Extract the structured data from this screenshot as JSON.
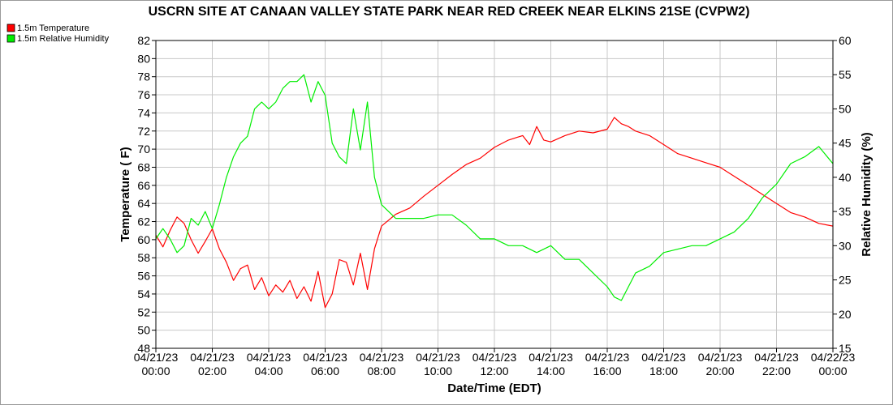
{
  "chart_data": {
    "type": "line",
    "title": "USCRN SITE AT CANAAN VALLEY STATE PARK NEAR RED CREEK NEAR ELKINS 21SE (CVPW2)",
    "xlabel": "Date/Time (EDT)",
    "ylabel_left": "Temperature ( F)",
    "ylabel_right": "Relative Humidity (%)",
    "x_tick_labels": [
      {
        "date": "04/21/23",
        "time": "00:00"
      },
      {
        "date": "04/21/23",
        "time": "02:00"
      },
      {
        "date": "04/21/23",
        "time": "04:00"
      },
      {
        "date": "04/21/23",
        "time": "06:00"
      },
      {
        "date": "04/21/23",
        "time": "08:00"
      },
      {
        "date": "04/21/23",
        "time": "10:00"
      },
      {
        "date": "04/21/23",
        "time": "12:00"
      },
      {
        "date": "04/21/23",
        "time": "14:00"
      },
      {
        "date": "04/21/23",
        "time": "16:00"
      },
      {
        "date": "04/21/23",
        "time": "18:00"
      },
      {
        "date": "04/21/23",
        "time": "20:00"
      },
      {
        "date": "04/21/23",
        "time": "22:00"
      },
      {
        "date": "04/22/23",
        "time": "00:00"
      }
    ],
    "x_range_hours": [
      0,
      24
    ],
    "ylim_left": [
      48,
      82
    ],
    "y_ticks_left": [
      48,
      50,
      52,
      54,
      56,
      58,
      60,
      62,
      64,
      66,
      68,
      70,
      72,
      74,
      76,
      78,
      80,
      82
    ],
    "ylim_right": [
      15,
      60
    ],
    "y_ticks_right": [
      15,
      20,
      25,
      30,
      35,
      40,
      45,
      50,
      55,
      60
    ],
    "grid": true,
    "legend_placement": "top-left",
    "series": [
      {
        "name": "1.5m Temperature",
        "color": "#ff0000",
        "axis": "left",
        "x_hours": [
          0,
          0.25,
          0.5,
          0.75,
          1,
          1.25,
          1.5,
          1.75,
          2,
          2.25,
          2.5,
          2.75,
          3,
          3.25,
          3.5,
          3.75,
          4,
          4.25,
          4.5,
          4.75,
          5,
          5.25,
          5.5,
          5.75,
          6,
          6.25,
          6.5,
          6.75,
          7,
          7.25,
          7.5,
          7.75,
          8,
          8.5,
          9,
          9.5,
          10,
          10.5,
          11,
          11.5,
          12,
          12.5,
          13,
          13.25,
          13.5,
          13.75,
          14,
          14.5,
          15,
          15.5,
          16,
          16.25,
          16.5,
          16.75,
          17,
          17.5,
          18,
          18.5,
          19,
          19.5,
          20,
          20.5,
          21,
          21.5,
          22,
          22.5,
          23,
          23.5,
          24
        ],
        "values": [
          60.5,
          59.2,
          61.0,
          62.5,
          61.8,
          60.0,
          58.5,
          59.8,
          61.2,
          59.0,
          57.5,
          55.5,
          56.8,
          57.2,
          54.5,
          55.8,
          53.8,
          55.0,
          54.2,
          55.5,
          53.5,
          54.8,
          53.2,
          56.5,
          52.5,
          54.0,
          57.8,
          57.5,
          55.0,
          58.5,
          54.5,
          59.0,
          61.5,
          62.8,
          63.5,
          64.8,
          66.0,
          67.2,
          68.3,
          69.0,
          70.2,
          71.0,
          71.5,
          70.5,
          72.5,
          71.0,
          70.8,
          71.5,
          72.0,
          71.8,
          72.2,
          73.5,
          72.8,
          72.5,
          72.0,
          71.5,
          70.5,
          69.5,
          69.0,
          68.5,
          68.0,
          67.0,
          66.0,
          65.0,
          64.0,
          63.0,
          62.5,
          61.8,
          61.5
        ]
      },
      {
        "name": "1.5m Relative Humidity",
        "color": "#00ee00",
        "axis": "right",
        "x_hours": [
          0,
          0.25,
          0.5,
          0.75,
          1,
          1.25,
          1.5,
          1.75,
          2,
          2.25,
          2.5,
          2.75,
          3,
          3.25,
          3.5,
          3.75,
          4,
          4.25,
          4.5,
          4.75,
          5,
          5.25,
          5.5,
          5.75,
          6,
          6.25,
          6.5,
          6.75,
          7,
          7.25,
          7.5,
          7.75,
          8,
          8.5,
          9,
          9.5,
          10,
          10.5,
          11,
          11.5,
          12,
          12.5,
          13,
          13.5,
          14,
          14.5,
          15,
          15.5,
          16,
          16.25,
          16.5,
          16.75,
          17,
          17.5,
          18,
          18.5,
          19,
          19.5,
          20,
          20.5,
          21,
          21.5,
          22,
          22.5,
          23,
          23.5,
          24
        ],
        "values": [
          31,
          32.5,
          31,
          29,
          30,
          34,
          33,
          35,
          32.5,
          36,
          40,
          43,
          45,
          46,
          50,
          51,
          50,
          51,
          53,
          54,
          54,
          55,
          51,
          54,
          52,
          45,
          43,
          42,
          50,
          44,
          51,
          40,
          36,
          34,
          34,
          34,
          34.5,
          34.5,
          33,
          31,
          31,
          30,
          30,
          29,
          30,
          28,
          28,
          26,
          24,
          22.5,
          22,
          24,
          26,
          27,
          29,
          29.5,
          30,
          30,
          31,
          32,
          34,
          37,
          39,
          42,
          43,
          44.5,
          42
        ]
      }
    ]
  }
}
